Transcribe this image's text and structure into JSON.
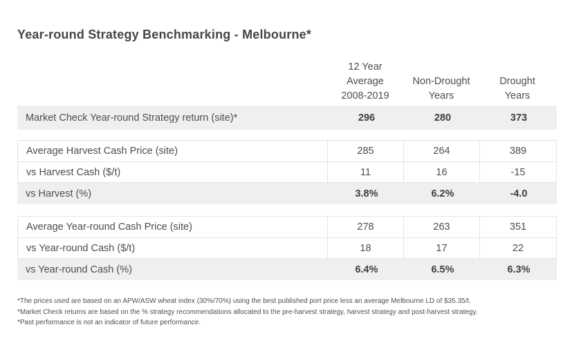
{
  "chart_data": {
    "type": "table",
    "title": "Year-round Strategy Benchmarking - Melbourne*",
    "columns": [
      {
        "label": "12 Year Average 2008-2019",
        "lines": [
          "12 Year",
          "Average",
          "2008-2019"
        ]
      },
      {
        "label": "Non-Drought Years",
        "lines": [
          "Non-Drought",
          "Years"
        ]
      },
      {
        "label": "Drought Years",
        "lines": [
          "Drought",
          "Years"
        ]
      }
    ],
    "sections": [
      {
        "rows": [
          {
            "label": "Market Check Year-round Strategy return (site)*",
            "values": [
              "296",
              "280",
              "373"
            ],
            "highlight": true
          }
        ]
      },
      {
        "rows": [
          {
            "label": "Average Harvest Cash Price (site)",
            "values": [
              "285",
              "264",
              "389"
            ],
            "highlight": false
          },
          {
            "label": "vs Harvest Cash ($/t)",
            "values": [
              "11",
              "16",
              "-15"
            ],
            "highlight": false
          },
          {
            "label": "vs Harvest (%)",
            "values": [
              "3.8%",
              "6.2%",
              "-4.0"
            ],
            "highlight": true
          }
        ]
      },
      {
        "rows": [
          {
            "label": "Average Year-round Cash Price (site)",
            "values": [
              "278",
              "263",
              "351"
            ],
            "highlight": false
          },
          {
            "label": "vs Year-round Cash ($/t)",
            "values": [
              "18",
              "17",
              "22"
            ],
            "highlight": false
          },
          {
            "label": "vs Year-round Cash (%)",
            "values": [
              "6.4%",
              "6.5%",
              "6.3%"
            ],
            "highlight": true
          }
        ]
      }
    ],
    "footnotes": [
      "*The prices used are based on an APW/ASW wheat index (30%/70%) using the best published port price less an average Melbourne LD of $35.35/t.",
      "*Market Check returns are based on the % strategy recommendations allocated to the pre-harvest strategy, harvest strategy and post-harvest strategy.",
      "*Past performance is not an indicator of future performance."
    ]
  },
  "colors": {
    "highlight_row_bg": "#efefef",
    "border": "#e4e4e4",
    "title_text": "#454545",
    "body_text": "#4d4d4d",
    "emphasis_text": "#3e3e3e",
    "footnote_text": "#4f4f4f"
  }
}
